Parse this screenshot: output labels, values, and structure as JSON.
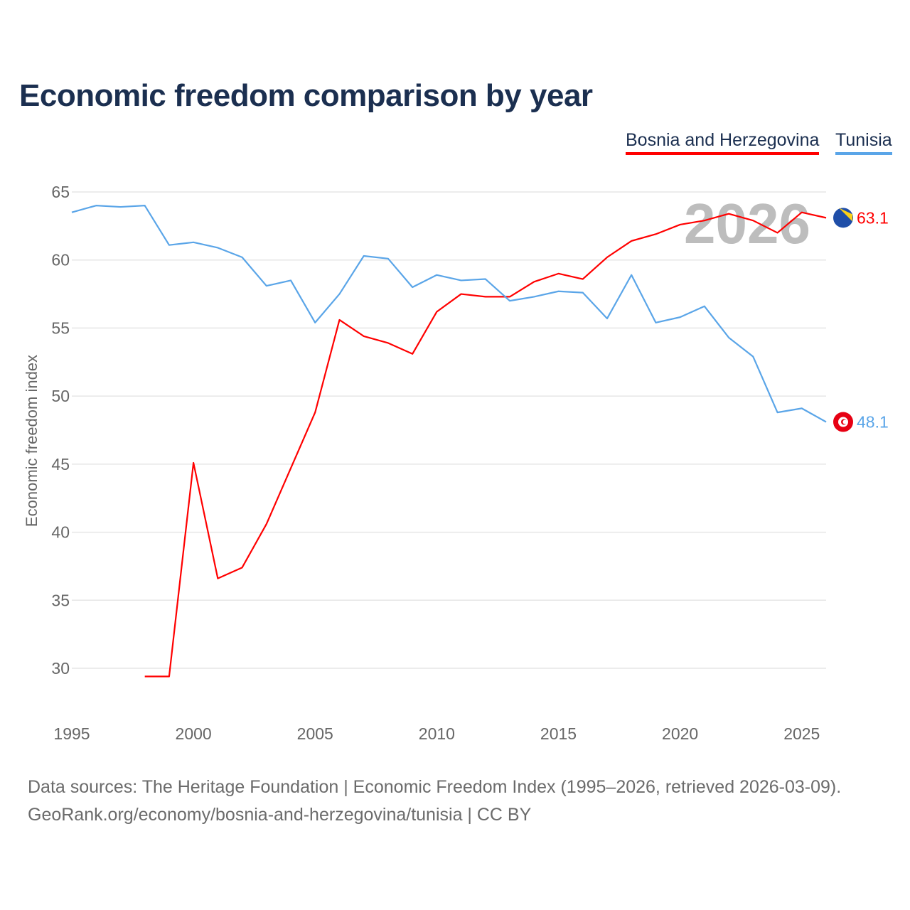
{
  "chart_data": {
    "type": "line",
    "title": "Economic freedom comparison by year",
    "xlabel": "",
    "ylabel": "Economic freedom index",
    "xlim": [
      1995,
      2026
    ],
    "ylim": [
      27,
      66
    ],
    "x_ticks": [
      1995,
      2000,
      2005,
      2010,
      2015,
      2020,
      2025
    ],
    "y_ticks": [
      30,
      35,
      40,
      45,
      50,
      55,
      60,
      65
    ],
    "grid": true,
    "legend_position": "top-right",
    "year_watermark": "2026",
    "series": [
      {
        "name": "Bosnia and Herzegovina",
        "color": "#ff0000",
        "end_label": "63.1",
        "flag": "bosnia-flag",
        "x": [
          1998,
          1999,
          2000,
          2001,
          2002,
          2003,
          2004,
          2005,
          2006,
          2007,
          2008,
          2009,
          2010,
          2011,
          2012,
          2013,
          2014,
          2015,
          2016,
          2017,
          2018,
          2019,
          2020,
          2021,
          2022,
          2023,
          2024,
          2025,
          2026
        ],
        "values": [
          29.4,
          29.4,
          45.1,
          36.6,
          37.4,
          40.6,
          44.7,
          48.8,
          55.6,
          54.4,
          53.9,
          53.1,
          56.2,
          57.5,
          57.3,
          57.3,
          58.4,
          59.0,
          58.6,
          60.2,
          61.4,
          61.9,
          62.6,
          62.9,
          63.4,
          62.9,
          62.0,
          63.5,
          63.1
        ]
      },
      {
        "name": "Tunisia",
        "color": "#5aa5e8",
        "end_label": "48.1",
        "flag": "tunisia-flag",
        "x": [
          1995,
          1996,
          1997,
          1998,
          1999,
          2000,
          2001,
          2002,
          2003,
          2004,
          2005,
          2006,
          2007,
          2008,
          2009,
          2010,
          2011,
          2012,
          2013,
          2014,
          2015,
          2016,
          2017,
          2018,
          2019,
          2020,
          2021,
          2022,
          2023,
          2024,
          2025,
          2026
        ],
        "values": [
          63.5,
          64.0,
          63.9,
          64.0,
          61.1,
          61.3,
          60.9,
          60.2,
          58.1,
          58.5,
          55.4,
          57.5,
          60.3,
          60.1,
          58.0,
          58.9,
          58.5,
          58.6,
          57.0,
          57.3,
          57.7,
          57.6,
          55.7,
          58.9,
          55.4,
          55.8,
          56.6,
          54.3,
          52.9,
          48.8,
          49.1,
          48.1
        ]
      }
    ]
  },
  "footer": {
    "line1": "Data sources: The Heritage Foundation | Economic Freedom Index (1995–2026, retrieved 2026-03-09).",
    "line2": "GeoRank.org/economy/bosnia-and-herzegovina/tunisia | CC BY"
  }
}
